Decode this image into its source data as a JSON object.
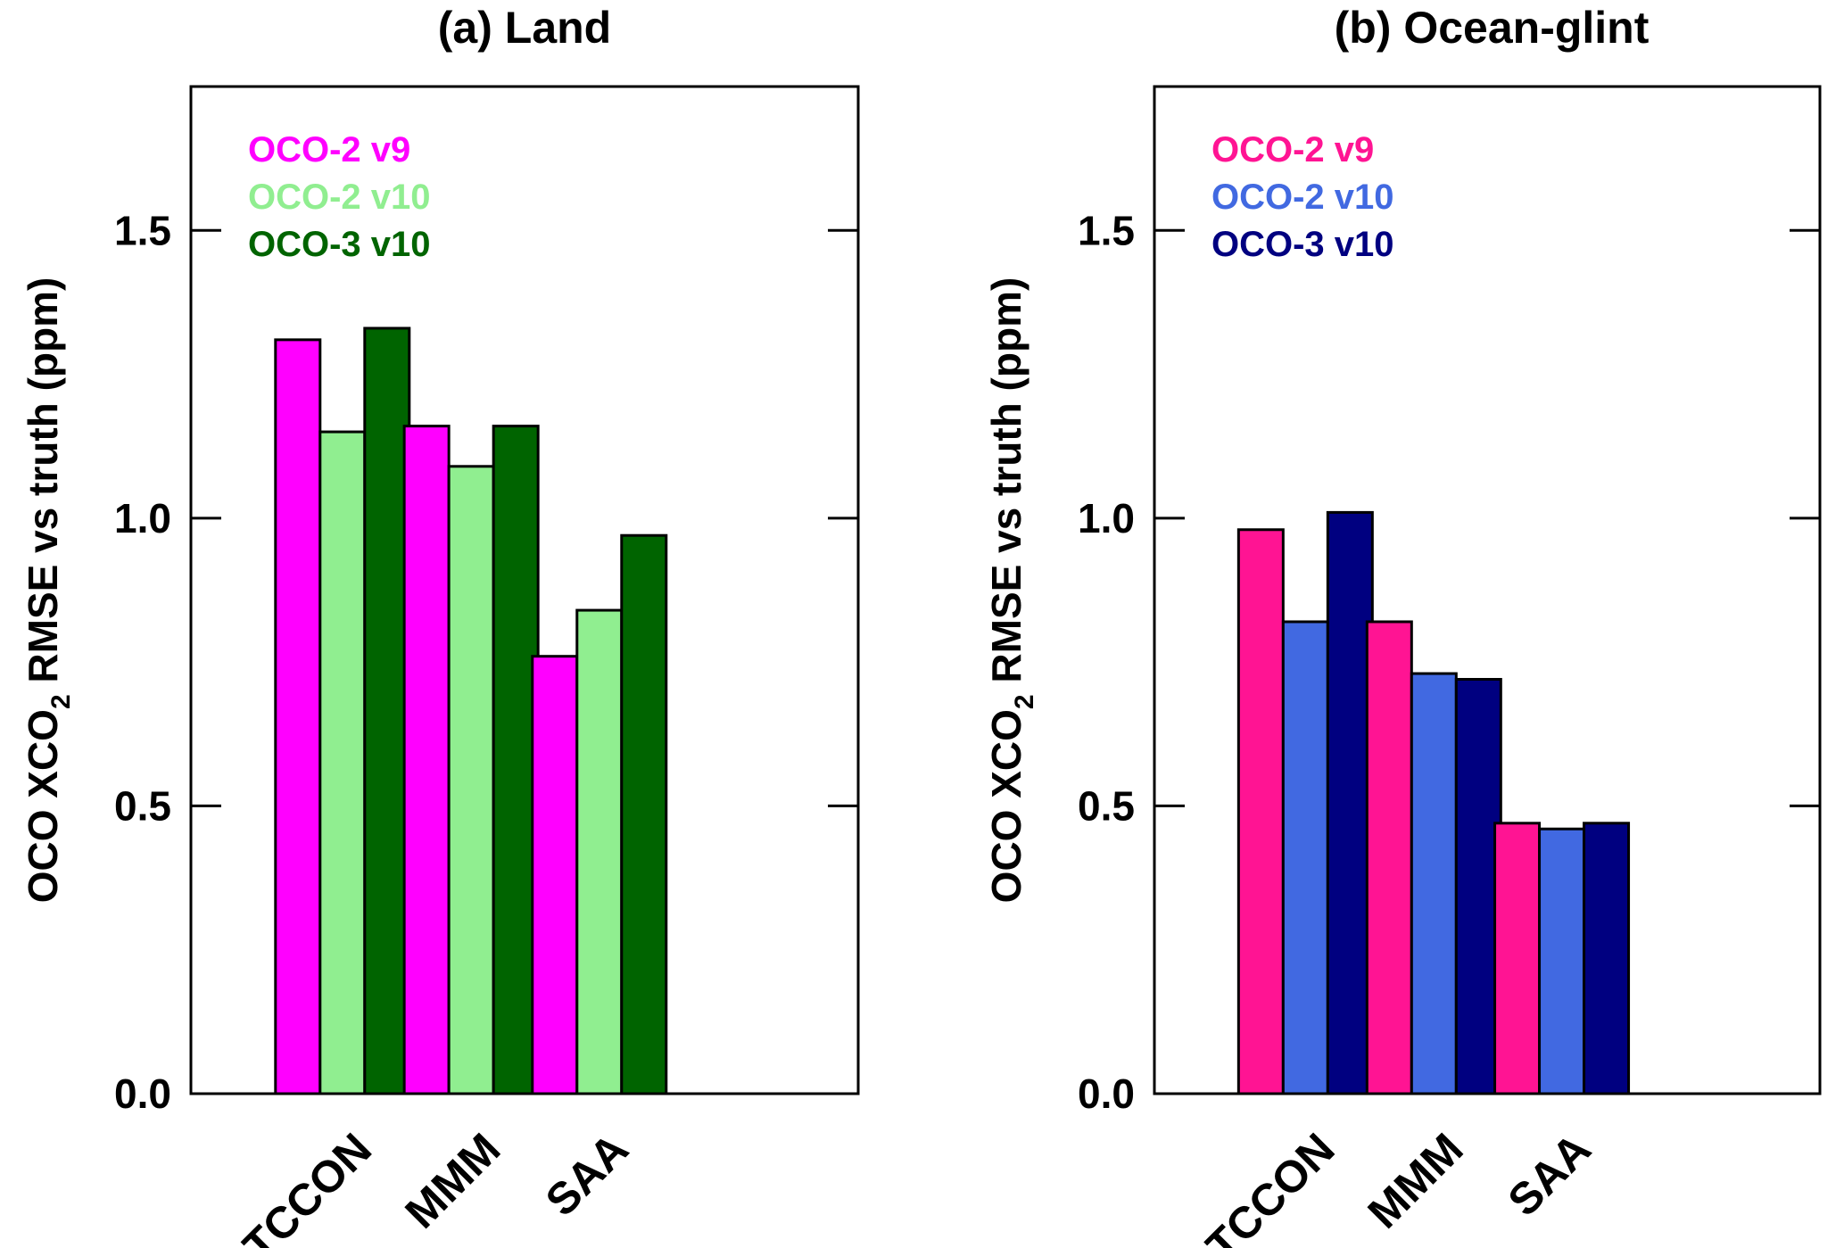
{
  "chart_data": [
    {
      "type": "bar",
      "title": "(a) Land",
      "ylabel_main": "OCO XCO",
      "ylabel_sub": "2",
      "ylabel_rest": " RMSE vs truth (ppm)",
      "ylim": [
        0,
        1.75
      ],
      "yticks": [
        "0.0",
        "0.5",
        "1.0",
        "1.5"
      ],
      "categories": [
        "TCCON",
        "MMM",
        "SAA"
      ],
      "series": [
        {
          "name": "OCO-2 v9",
          "color": "#ff00ff",
          "values": [
            1.31,
            1.16,
            0.76
          ]
        },
        {
          "name": "OCO-2 v10",
          "color": "#90ee90",
          "values": [
            1.15,
            1.09,
            0.84
          ]
        },
        {
          "name": "OCO-3 v10",
          "color": "#006400",
          "values": [
            1.33,
            1.16,
            0.97
          ]
        }
      ],
      "legend_position": "top-left"
    },
    {
      "type": "bar",
      "title": "(b) Ocean-glint",
      "ylabel_main": "OCO XCO",
      "ylabel_sub": "2",
      "ylabel_rest": " RMSE vs truth (ppm)",
      "ylim": [
        0,
        1.75
      ],
      "yticks": [
        "0.0",
        "0.5",
        "1.0",
        "1.5"
      ],
      "categories": [
        "TCCON",
        "MMM",
        "SAA"
      ],
      "series": [
        {
          "name": "OCO-2 v9",
          "color": "#ff1493",
          "values": [
            0.98,
            0.82,
            0.47
          ]
        },
        {
          "name": "OCO-2 v10",
          "color": "#4169e1",
          "values": [
            0.82,
            0.73,
            0.46
          ]
        },
        {
          "name": "OCO-3 v10",
          "color": "#000080",
          "values": [
            1.01,
            0.72,
            0.47
          ]
        }
      ],
      "legend_position": "top-left"
    }
  ]
}
